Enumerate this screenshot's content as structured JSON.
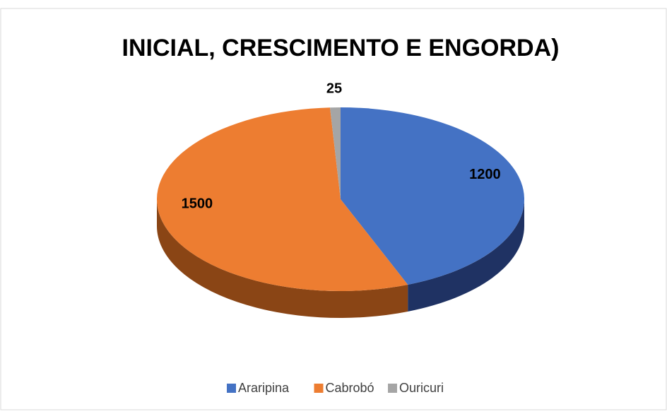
{
  "chart_data": {
    "type": "pie",
    "title": "INICIAL, CRESCIMENTO E ENGORDA)",
    "categories": [
      "Araripina",
      "Cabrobó",
      "Ouricuri"
    ],
    "values": [
      1200,
      1500,
      25
    ],
    "colors": [
      "#4472c4",
      "#ed7d31",
      "#a5a5a5"
    ],
    "side_colors": [
      "#1f3263",
      "#8a4515",
      "#6b6b6b"
    ],
    "legend": "bottom"
  }
}
